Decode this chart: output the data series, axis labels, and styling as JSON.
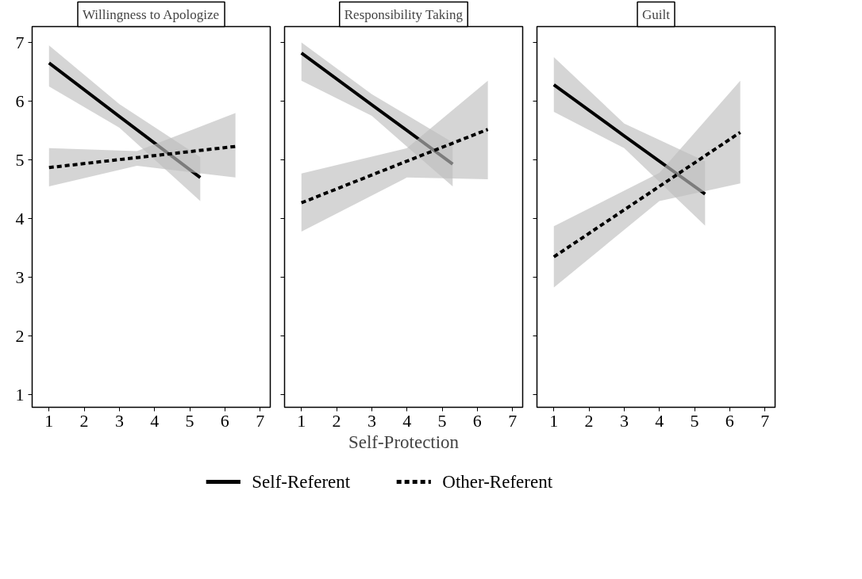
{
  "chart_data": [
    {
      "type": "line",
      "title": "Willingness to Apologize",
      "xlim": [
        0.52,
        7.29
      ],
      "ylim": [
        0.79,
        7.27
      ],
      "xticks": [
        1,
        2,
        3,
        4,
        5,
        6,
        7
      ],
      "yticks": [
        1,
        2,
        3,
        4,
        5,
        6,
        7
      ],
      "grid": false,
      "series": [
        {
          "color": "#000000",
          "line_style": "solid",
          "x": [
            1,
            3,
            5.3
          ],
          "values": [
            6.65,
            5.74,
            4.7
          ],
          "lower": [
            6.25,
            5.55,
            4.3
          ],
          "upper": [
            6.95,
            5.95,
            5.05
          ]
        },
        {
          "color": "#000000",
          "line_style": "dashed",
          "x": [
            1,
            3.5,
            6.3
          ],
          "values": [
            4.87,
            5.04,
            5.23
          ],
          "lower": [
            4.55,
            4.9,
            4.7
          ],
          "upper": [
            5.2,
            5.15,
            5.8
          ]
        }
      ]
    },
    {
      "type": "line",
      "title": "Responsibility Taking",
      "xlabel": "Self-Protection",
      "legend": "bottom",
      "xlim": [
        0.52,
        7.29
      ],
      "ylim": [
        0.79,
        7.27
      ],
      "xticks": [
        1,
        2,
        3,
        4,
        5,
        6,
        7
      ],
      "yticks": [
        1,
        2,
        3,
        4,
        5,
        6,
        7
      ],
      "grid": false,
      "tick_labels": "x",
      "series": [
        {
          "name": "Self-Referent",
          "color": "#000000",
          "line_style": "solid",
          "x": [
            1,
            3,
            5.3
          ],
          "values": [
            6.82,
            5.94,
            4.93
          ],
          "lower": [
            6.35,
            5.75,
            4.55
          ],
          "upper": [
            7.0,
            6.12,
            5.3
          ]
        },
        {
          "name": "Other-Referent",
          "color": "#000000",
          "line_style": "dashed",
          "x": [
            1,
            4,
            6.3
          ],
          "values": [
            4.27,
            4.98,
            5.52
          ],
          "lower": [
            3.78,
            4.7,
            4.67
          ],
          "upper": [
            4.77,
            5.2,
            6.35
          ]
        }
      ]
    },
    {
      "type": "line",
      "title": "Guilt",
      "xlim": [
        0.52,
        7.29
      ],
      "ylim": [
        0.79,
        7.27
      ],
      "xticks": [
        1,
        2,
        3,
        4,
        5,
        6,
        7
      ],
      "yticks": [
        1,
        2,
        3,
        4,
        5,
        6,
        7
      ],
      "grid": false,
      "tick_labels": "x",
      "series": [
        {
          "color": "#000000",
          "line_style": "solid",
          "x": [
            1,
            3,
            5.3
          ],
          "values": [
            6.28,
            5.41,
            4.42
          ],
          "lower": [
            5.82,
            5.2,
            3.88
          ],
          "upper": [
            6.75,
            5.62,
            4.98
          ]
        },
        {
          "color": "#000000",
          "line_style": "dashed",
          "x": [
            1,
            4,
            6.3
          ],
          "values": [
            3.35,
            4.55,
            5.47
          ],
          "lower": [
            2.83,
            4.3,
            4.6
          ],
          "upper": [
            3.87,
            4.78,
            6.35
          ]
        }
      ]
    }
  ]
}
